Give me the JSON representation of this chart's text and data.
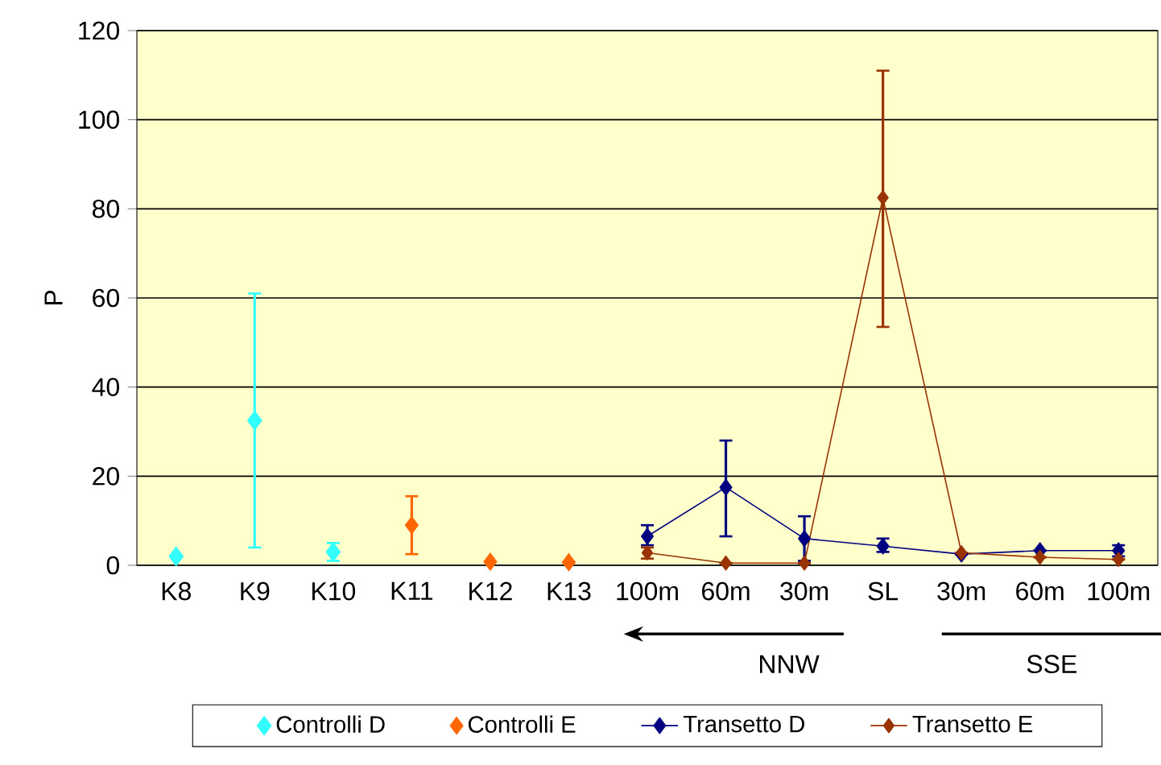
{
  "chart_data": {
    "type": "line",
    "ylabel": "P",
    "categories": [
      "K8",
      "K9",
      "K10",
      "K11",
      "K12",
      "K13",
      "100m",
      "60m",
      "30m",
      "SL",
      "30m",
      "60m",
      "100m"
    ],
    "series": [
      {
        "name": "Controlli D",
        "type": "scatter",
        "color": "#33ffff",
        "values": [
          2,
          32.5,
          3,
          null,
          null,
          null,
          null,
          null,
          null,
          null,
          null,
          null,
          null
        ],
        "errors": [
          null,
          [
            4,
            61
          ],
          [
            1,
            5
          ],
          null,
          null,
          null,
          null,
          null,
          null,
          null,
          null,
          null,
          null
        ]
      },
      {
        "name": "Controlli E",
        "type": "scatter",
        "color": "#ff6600",
        "values": [
          null,
          null,
          null,
          9,
          0.8,
          0.7,
          null,
          null,
          null,
          null,
          null,
          null,
          null
        ],
        "errors": [
          null,
          null,
          null,
          [
            2.5,
            15.5
          ],
          null,
          null,
          null,
          null,
          null,
          null,
          null,
          null,
          null
        ]
      },
      {
        "name": "Transetto D",
        "color": "#000080",
        "values": [
          null,
          null,
          null,
          null,
          null,
          null,
          6.5,
          17.5,
          6,
          4.3,
          2.5,
          3.3,
          3.3
        ],
        "errors": [
          null,
          null,
          null,
          null,
          null,
          null,
          [
            4.5,
            9
          ],
          [
            6.5,
            28
          ],
          [
            1,
            11
          ],
          [
            3,
            6
          ],
          null,
          null,
          [
            2,
            4.5
          ]
        ]
      },
      {
        "name": "Transetto E",
        "color": "#993300",
        "values": [
          null,
          null,
          null,
          null,
          null,
          null,
          2.8,
          0.5,
          0.5,
          82.5,
          2.8,
          1.8,
          1.3
        ],
        "errors": [
          null,
          null,
          null,
          null,
          null,
          null,
          [
            1.5,
            4
          ],
          null,
          null,
          [
            53.5,
            111
          ],
          null,
          null,
          null
        ]
      }
    ],
    "ylim": [
      0,
      120
    ],
    "yticks": [
      0,
      20,
      40,
      60,
      80,
      100,
      120
    ],
    "grid": "y",
    "legend": "bottom",
    "marker": "diamond",
    "annotations": [
      "NNW",
      "SSE"
    ]
  }
}
